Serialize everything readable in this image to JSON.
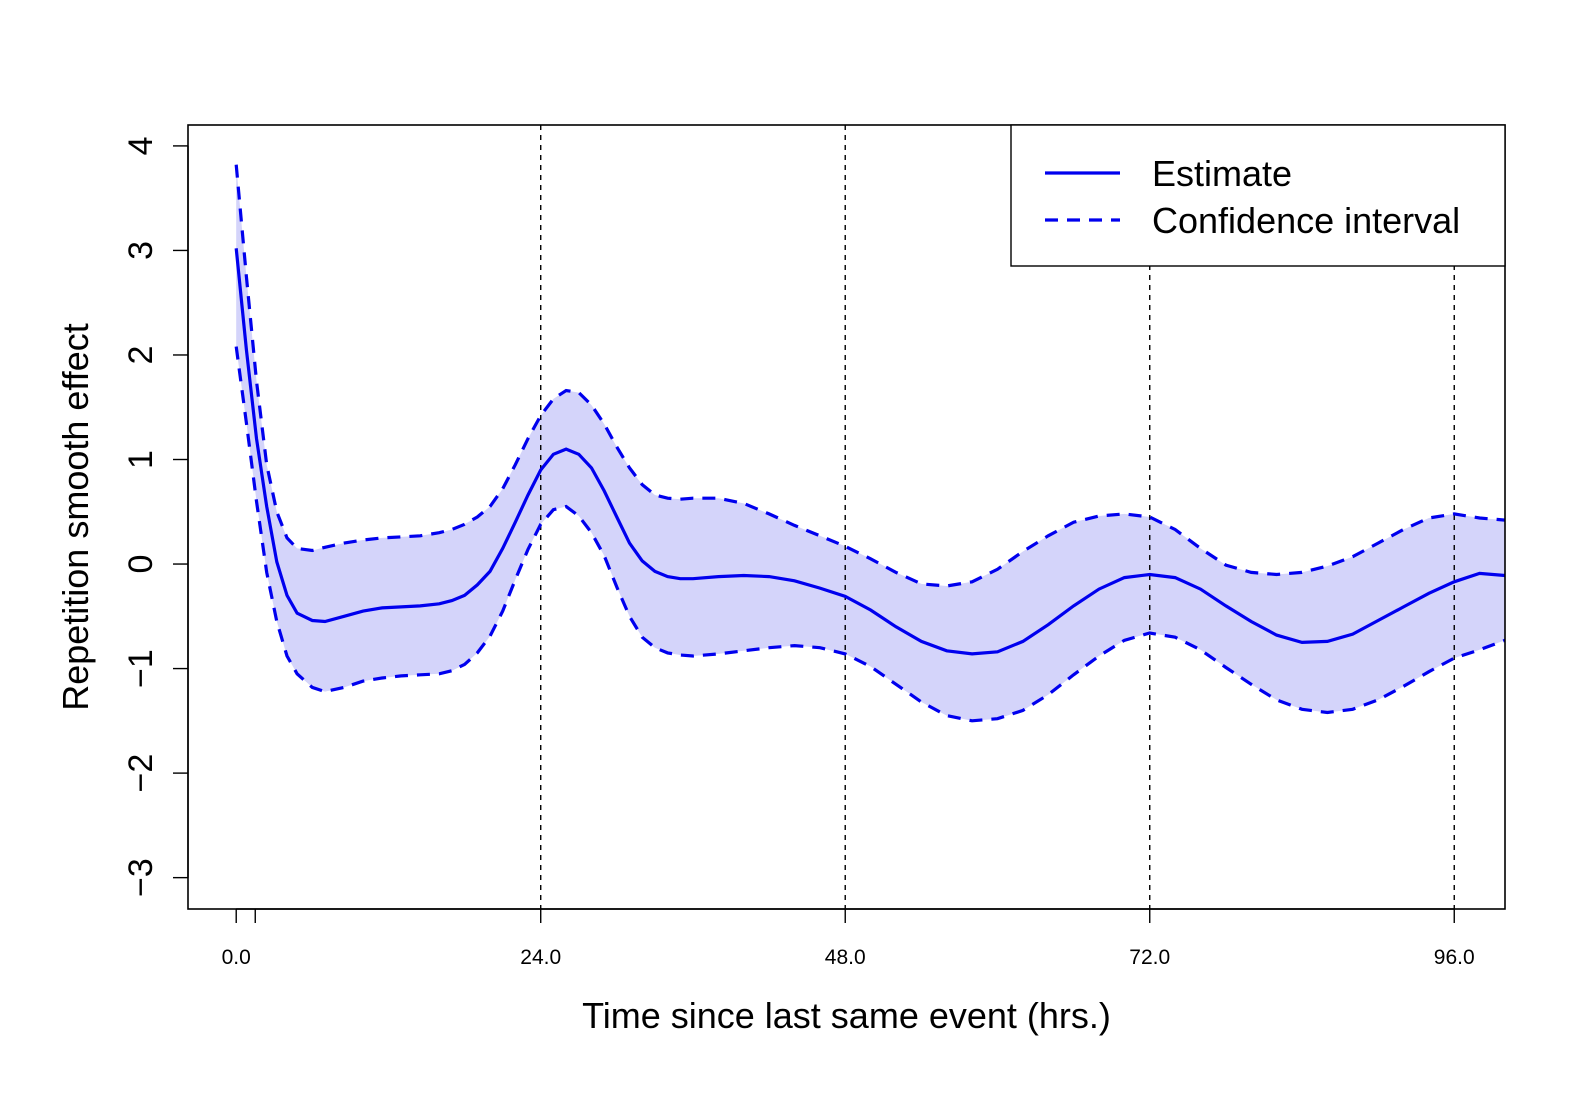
{
  "chart_data": {
    "type": "line",
    "xlabel": "Time since last same event (hrs.)",
    "ylabel": "Repetition smooth effect",
    "xlim": [
      -3.8,
      100
    ],
    "ylim": [
      -3.3,
      4.2
    ],
    "x_ticks": [
      0,
      1.5,
      24,
      48,
      72,
      96
    ],
    "x_tick_labels": [
      "0.0",
      "",
      "24.0",
      "48.0",
      "72.0",
      "96.0"
    ],
    "y_ticks": [
      -3,
      -2,
      -1,
      0,
      1,
      2,
      3,
      4
    ],
    "y_tick_labels": [
      "−3",
      "−2",
      "−1",
      "0",
      "1",
      "2",
      "3",
      "4"
    ],
    "vlines": [
      24,
      48,
      72,
      96
    ],
    "legend": {
      "position": "top-right",
      "entries": [
        {
          "label": "Estimate",
          "style": "solid"
        },
        {
          "label": "Confidence interval",
          "style": "dashed"
        }
      ]
    },
    "colors": {
      "line": "#0000ee",
      "band": "#d4d4fa"
    },
    "x": [
      0,
      0.8,
      1.6,
      2.4,
      3.2,
      4,
      4.8,
      6,
      7,
      8.5,
      10,
      11.5,
      13,
      14.5,
      16,
      17,
      18,
      19,
      20,
      21,
      22,
      23,
      24,
      25,
      26,
      27,
      28,
      29,
      30,
      31,
      32,
      33,
      34,
      35,
      36,
      38,
      40,
      42,
      44,
      46,
      48,
      50,
      52,
      54,
      56,
      58,
      60,
      62,
      64,
      66,
      68,
      70,
      72,
      74,
      76,
      78,
      80,
      82,
      84,
      86,
      88,
      90,
      92,
      94,
      96,
      98,
      100
    ],
    "series": [
      {
        "name": "Estimate",
        "values": [
          3.02,
          2.05,
          1.2,
          0.55,
          0.02,
          -0.3,
          -0.47,
          -0.54,
          -0.55,
          -0.5,
          -0.45,
          -0.42,
          -0.41,
          -0.4,
          -0.38,
          -0.35,
          -0.3,
          -0.2,
          -0.07,
          0.15,
          0.4,
          0.66,
          0.9,
          1.05,
          1.1,
          1.05,
          0.92,
          0.7,
          0.45,
          0.2,
          0.03,
          -0.07,
          -0.12,
          -0.14,
          -0.14,
          -0.12,
          -0.11,
          -0.12,
          -0.16,
          -0.23,
          -0.31,
          -0.44,
          -0.6,
          -0.74,
          -0.83,
          -0.86,
          -0.84,
          -0.74,
          -0.58,
          -0.4,
          -0.24,
          -0.13,
          -0.1,
          -0.13,
          -0.24,
          -0.4,
          -0.55,
          -0.68,
          -0.75,
          -0.74,
          -0.67,
          -0.54,
          -0.41,
          -0.28,
          -0.17,
          -0.09,
          -0.11
        ]
      },
      {
        "name": "Confidence interval",
        "values": [
          3.82,
          2.75,
          1.75,
          0.95,
          0.5,
          0.25,
          0.15,
          0.13,
          0.16,
          0.2,
          0.23,
          0.25,
          0.26,
          0.27,
          0.3,
          0.33,
          0.38,
          0.45,
          0.55,
          0.72,
          0.95,
          1.2,
          1.42,
          1.58,
          1.66,
          1.64,
          1.52,
          1.34,
          1.12,
          0.92,
          0.76,
          0.66,
          0.63,
          0.62,
          0.63,
          0.63,
          0.58,
          0.48,
          0.37,
          0.27,
          0.17,
          0.05,
          -0.08,
          -0.19,
          -0.21,
          -0.17,
          -0.05,
          0.12,
          0.27,
          0.4,
          0.46,
          0.48,
          0.45,
          0.33,
          0.15,
          -0.01,
          -0.08,
          -0.1,
          -0.08,
          -0.02,
          0.07,
          0.2,
          0.33,
          0.44,
          0.48,
          0.44,
          0.42
        ]
      },
      {
        "name": "Confidence interval lower",
        "values": [
          2.08,
          1.35,
          0.6,
          -0.08,
          -0.55,
          -0.88,
          -1.05,
          -1.18,
          -1.22,
          -1.18,
          -1.12,
          -1.09,
          -1.07,
          -1.06,
          -1.05,
          -1.02,
          -0.96,
          -0.85,
          -0.69,
          -0.45,
          -0.15,
          0.14,
          0.38,
          0.52,
          0.55,
          0.46,
          0.3,
          0.08,
          -0.22,
          -0.5,
          -0.7,
          -0.8,
          -0.85,
          -0.87,
          -0.88,
          -0.86,
          -0.83,
          -0.8,
          -0.78,
          -0.8,
          -0.86,
          -0.98,
          -1.15,
          -1.32,
          -1.45,
          -1.5,
          -1.48,
          -1.4,
          -1.25,
          -1.06,
          -0.88,
          -0.73,
          -0.66,
          -0.7,
          -0.82,
          -0.99,
          -1.15,
          -1.3,
          -1.39,
          -1.42,
          -1.39,
          -1.3,
          -1.17,
          -1.03,
          -0.9,
          -0.82,
          -0.73
        ]
      }
    ]
  }
}
